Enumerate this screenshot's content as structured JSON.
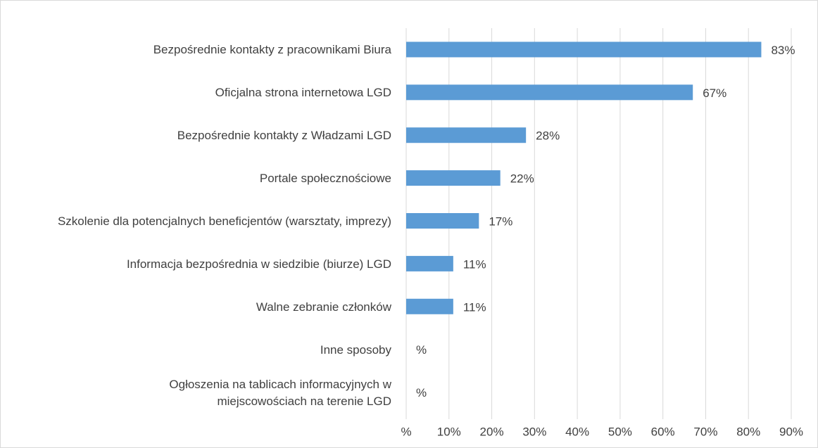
{
  "chart_data": {
    "type": "bar",
    "orientation": "horizontal",
    "categories": [
      "Bezpośrednie kontakty z pracownikami Biura",
      "Oficjalna strona internetowa LGD",
      "Bezpośrednie kontakty z Władzami LGD",
      "Portale społecznościowe",
      "Szkolenie dla potencjalnych beneficjentów (warsztaty, imprezy)",
      "Informacja bezpośrednia w siedzibie (biurze) LGD",
      "Walne zebranie członków",
      "Inne sposoby",
      "Ogłoszenia na tablicach informacyjnych w miejscowościach na terenie LGD"
    ],
    "values": [
      83,
      67,
      28,
      22,
      17,
      11,
      11,
      0,
      0
    ],
    "value_labels": [
      "83%",
      "67%",
      "28%",
      "22%",
      "17%",
      "11%",
      "11%",
      "%",
      "%"
    ],
    "color": "#5b9bd5",
    "xlim": [
      0,
      90
    ],
    "xticks": [
      {
        "value": 0,
        "label": "%"
      },
      {
        "value": 10,
        "label": "10%"
      },
      {
        "value": 20,
        "label": "20%"
      },
      {
        "value": 30,
        "label": "30%"
      },
      {
        "value": 40,
        "label": "40%"
      },
      {
        "value": 50,
        "label": "50%"
      },
      {
        "value": 60,
        "label": "60%"
      },
      {
        "value": 70,
        "label": "70%"
      },
      {
        "value": 80,
        "label": "80%"
      },
      {
        "value": 90,
        "label": "90%"
      }
    ],
    "grid": true
  }
}
